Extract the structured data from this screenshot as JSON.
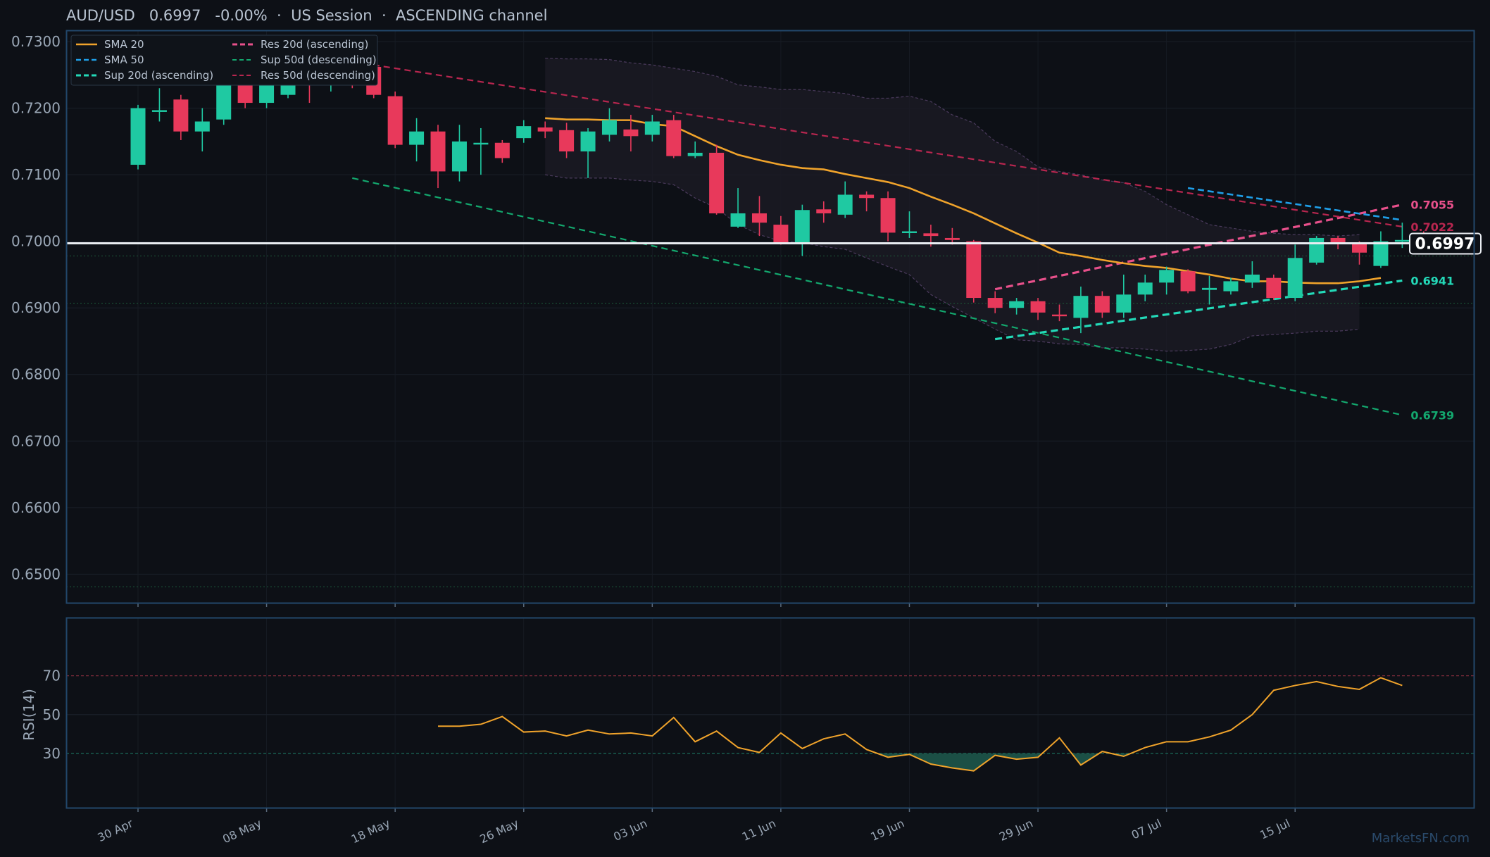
{
  "header": {
    "symbol": "AUD/USD",
    "price": "0.6997",
    "change": "-0.00%",
    "session": "US Session",
    "channel": "ASCENDING channel"
  },
  "watermark": "MarketsFN.com",
  "colors": {
    "background": "#0d1016",
    "up": "#1fc9a2",
    "down": "#e8395b",
    "sma20": "#f0a32b",
    "sma50": "#1f9fe8",
    "res20": "#e8508b",
    "res50": "#b8264f",
    "sup20": "#23d9b8",
    "sup50": "#13a86e",
    "rsi": "#f0a32b"
  },
  "chart_data": [
    {
      "type": "candlestick",
      "title": "AUD/USD",
      "ylim": [
        0.6457,
        0.7317
      ],
      "yticks": [
        "0.7300",
        "0.7200",
        "0.7100",
        "0.7000",
        "0.6900",
        "0.6800",
        "0.6700",
        "0.6600",
        "0.6500"
      ],
      "xticks": [
        "30 Apr",
        "08 May",
        "18 May",
        "26 May",
        "03 Jun",
        "11 Jun",
        "19 Jun",
        "29 Jun",
        "07 Jul",
        "15 Jul"
      ],
      "xtick_index": [
        0,
        6,
        12,
        18,
        24,
        30,
        36,
        42,
        48,
        54
      ],
      "current_price": 0.6997,
      "current_price_label": "0.6997",
      "candles": [
        {
          "o": 0.7115,
          "h": 0.7205,
          "l": 0.7108,
          "c": 0.72
        },
        {
          "o": 0.7197,
          "h": 0.723,
          "l": 0.718,
          "c": 0.7197
        },
        {
          "o": 0.7213,
          "h": 0.722,
          "l": 0.7152,
          "c": 0.7165
        },
        {
          "o": 0.7165,
          "h": 0.72,
          "l": 0.7135,
          "c": 0.718
        },
        {
          "o": 0.7183,
          "h": 0.725,
          "l": 0.7175,
          "c": 0.7245
        },
        {
          "o": 0.725,
          "h": 0.7262,
          "l": 0.72,
          "c": 0.7208
        },
        {
          "o": 0.7208,
          "h": 0.7262,
          "l": 0.72,
          "c": 0.7255
        },
        {
          "o": 0.722,
          "h": 0.7265,
          "l": 0.7215,
          "c": 0.7255
        },
        {
          "o": 0.726,
          "h": 0.727,
          "l": 0.7208,
          "c": 0.724
        },
        {
          "o": 0.7243,
          "h": 0.7275,
          "l": 0.7225,
          "c": 0.727
        },
        {
          "o": 0.726,
          "h": 0.727,
          "l": 0.723,
          "c": 0.725
        },
        {
          "o": 0.7262,
          "h": 0.7265,
          "l": 0.7215,
          "c": 0.722
        },
        {
          "o": 0.7218,
          "h": 0.7225,
          "l": 0.714,
          "c": 0.7145
        },
        {
          "o": 0.7145,
          "h": 0.7185,
          "l": 0.712,
          "c": 0.7165
        },
        {
          "o": 0.7165,
          "h": 0.7175,
          "l": 0.708,
          "c": 0.7105
        },
        {
          "o": 0.7105,
          "h": 0.7175,
          "l": 0.709,
          "c": 0.715
        },
        {
          "o": 0.7148,
          "h": 0.717,
          "l": 0.71,
          "c": 0.7148
        },
        {
          "o": 0.7148,
          "h": 0.7152,
          "l": 0.7118,
          "c": 0.7125
        },
        {
          "o": 0.7155,
          "h": 0.7182,
          "l": 0.7148,
          "c": 0.7173
        },
        {
          "o": 0.7171,
          "h": 0.718,
          "l": 0.7155,
          "c": 0.7165
        },
        {
          "o": 0.7167,
          "h": 0.7178,
          "l": 0.7125,
          "c": 0.7135
        },
        {
          "o": 0.7135,
          "h": 0.717,
          "l": 0.7095,
          "c": 0.7165
        },
        {
          "o": 0.716,
          "h": 0.72,
          "l": 0.715,
          "c": 0.7182
        },
        {
          "o": 0.7168,
          "h": 0.719,
          "l": 0.7135,
          "c": 0.7158
        },
        {
          "o": 0.716,
          "h": 0.719,
          "l": 0.715,
          "c": 0.718
        },
        {
          "o": 0.7182,
          "h": 0.719,
          "l": 0.7125,
          "c": 0.7128
        },
        {
          "o": 0.7128,
          "h": 0.715,
          "l": 0.7125,
          "c": 0.7133
        },
        {
          "o": 0.7133,
          "h": 0.7145,
          "l": 0.704,
          "c": 0.7042
        },
        {
          "o": 0.7022,
          "h": 0.708,
          "l": 0.702,
          "c": 0.7042
        },
        {
          "o": 0.7042,
          "h": 0.7068,
          "l": 0.7008,
          "c": 0.7028
        },
        {
          "o": 0.7025,
          "h": 0.7038,
          "l": 0.6995,
          "c": 0.6998
        },
        {
          "o": 0.6998,
          "h": 0.7055,
          "l": 0.6978,
          "c": 0.7047
        },
        {
          "o": 0.7048,
          "h": 0.706,
          "l": 0.7028,
          "c": 0.7042
        },
        {
          "o": 0.704,
          "h": 0.709,
          "l": 0.7035,
          "c": 0.707
        },
        {
          "o": 0.707,
          "h": 0.7075,
          "l": 0.7045,
          "c": 0.7065
        },
        {
          "o": 0.7065,
          "h": 0.7075,
          "l": 0.7,
          "c": 0.7013
        },
        {
          "o": 0.7013,
          "h": 0.7045,
          "l": 0.7005,
          "c": 0.7015
        },
        {
          "o": 0.7012,
          "h": 0.7025,
          "l": 0.6992,
          "c": 0.7008
        },
        {
          "o": 0.7005,
          "h": 0.702,
          "l": 0.6995,
          "c": 0.7002
        },
        {
          "o": 0.7,
          "h": 0.7002,
          "l": 0.6908,
          "c": 0.6915
        },
        {
          "o": 0.6915,
          "h": 0.6925,
          "l": 0.6892,
          "c": 0.69
        },
        {
          "o": 0.69,
          "h": 0.6915,
          "l": 0.689,
          "c": 0.691
        },
        {
          "o": 0.691,
          "h": 0.6915,
          "l": 0.6882,
          "c": 0.6893
        },
        {
          "o": 0.689,
          "h": 0.6905,
          "l": 0.688,
          "c": 0.6888
        },
        {
          "o": 0.6885,
          "h": 0.6932,
          "l": 0.6862,
          "c": 0.6918
        },
        {
          "o": 0.6918,
          "h": 0.6925,
          "l": 0.6885,
          "c": 0.6893
        },
        {
          "o": 0.6893,
          "h": 0.695,
          "l": 0.6885,
          "c": 0.692
        },
        {
          "o": 0.692,
          "h": 0.695,
          "l": 0.691,
          "c": 0.6938
        },
        {
          "o": 0.6938,
          "h": 0.6962,
          "l": 0.692,
          "c": 0.6957
        },
        {
          "o": 0.6955,
          "h": 0.6958,
          "l": 0.6922,
          "c": 0.6925
        },
        {
          "o": 0.6927,
          "h": 0.6948,
          "l": 0.6905,
          "c": 0.693
        },
        {
          "o": 0.6925,
          "h": 0.6945,
          "l": 0.692,
          "c": 0.694
        },
        {
          "o": 0.6938,
          "h": 0.697,
          "l": 0.693,
          "c": 0.695
        },
        {
          "o": 0.6945,
          "h": 0.695,
          "l": 0.6912,
          "c": 0.6915
        },
        {
          "o": 0.6915,
          "h": 0.6995,
          "l": 0.691,
          "c": 0.6975
        },
        {
          "o": 0.6968,
          "h": 0.7008,
          "l": 0.6965,
          "c": 0.7005
        },
        {
          "o": 0.7005,
          "h": 0.7008,
          "l": 0.6988,
          "c": 0.6998
        },
        {
          "o": 0.6997,
          "h": 0.7,
          "l": 0.6965,
          "c": 0.6983
        },
        {
          "o": 0.6963,
          "h": 0.7015,
          "l": 0.696,
          "c": 0.7
        },
        {
          "o": 0.7002,
          "h": 0.7028,
          "l": 0.699,
          "c": 0.7002
        },
        {
          "o": 0.7,
          "h": 0.7015,
          "l": 0.699,
          "c": 0.6997
        }
      ],
      "sma20": {
        "start": 19,
        "values": [
          0.7185,
          0.7183,
          0.7183,
          0.7182,
          0.7182,
          0.7176,
          0.7173,
          0.7158,
          0.7143,
          0.713,
          0.7122,
          0.7115,
          0.711,
          0.7108,
          0.7101,
          0.7095,
          0.7089,
          0.708,
          0.7067,
          0.7055,
          0.7042,
          0.7027,
          0.7012,
          0.6998,
          0.6983,
          0.6978,
          0.6972,
          0.6967,
          0.6963,
          0.696,
          0.6955,
          0.695,
          0.6944,
          0.694,
          0.694,
          0.6938,
          0.6937,
          0.6937,
          0.694,
          0.6945
        ]
      },
      "channel_band": {
        "start": 19,
        "upper": [
          0.7275,
          0.7274,
          0.7274,
          0.7273,
          0.7268,
          0.7265,
          0.726,
          0.7255,
          0.7248,
          0.7235,
          0.7232,
          0.7228,
          0.7228,
          0.7225,
          0.7222,
          0.7215,
          0.7215,
          0.7218,
          0.721,
          0.719,
          0.7178,
          0.715,
          0.7135,
          0.7112,
          0.7105,
          0.71,
          0.7092,
          0.7088,
          0.7075,
          0.7055,
          0.704,
          0.7025,
          0.702,
          0.7015,
          0.7012,
          0.701,
          0.701,
          0.7008,
          0.701
        ],
        "lower": [
          0.71,
          0.7095,
          0.7095,
          0.7095,
          0.7092,
          0.709,
          0.7085,
          0.7065,
          0.705,
          0.7025,
          0.701,
          0.7,
          0.6998,
          0.6992,
          0.6988,
          0.6975,
          0.6962,
          0.695,
          0.692,
          0.6902,
          0.6885,
          0.6868,
          0.6852,
          0.685,
          0.6846,
          0.6845,
          0.684,
          0.684,
          0.6838,
          0.6835,
          0.6836,
          0.6838,
          0.6845,
          0.6858,
          0.686,
          0.6862,
          0.6865,
          0.6865,
          0.6868
        ]
      },
      "trendlines": [
        {
          "name": "Res 20d (ascending)",
          "from": [
            40,
            0.6928
          ],
          "to": [
            59,
            0.7055
          ],
          "label": "0.7055"
        },
        {
          "name": "Sup 20d (ascending)",
          "from": [
            40,
            0.6853
          ],
          "to": [
            59,
            0.6941
          ],
          "label": "0.6941"
        },
        {
          "name": "Res 50d (descending)",
          "from": [
            10,
            0.727
          ],
          "to": [
            59,
            0.7022
          ],
          "label": "0.7022"
        },
        {
          "name": "Sup 50d (descending)",
          "from": [
            10,
            0.7095
          ],
          "to": [
            59,
            0.6739
          ],
          "label": "0.6739"
        },
        {
          "name": "SMA 50",
          "from": [
            49,
            0.708
          ],
          "to": [
            59,
            0.7032
          ]
        }
      ],
      "horizontal_levels": [
        0.6978,
        0.6907,
        0.6481
      ],
      "legend": {
        "position": "top-left",
        "items": [
          "SMA 20",
          "SMA 50",
          "Sup 20d (ascending)",
          "Res 20d (ascending)",
          "Sup 50d (descending)",
          "Res 50d (descending)"
        ]
      }
    },
    {
      "type": "line",
      "ylabel": "RSI(14)",
      "ylim": [
        2,
        100
      ],
      "yticks": [
        "70",
        "50",
        "30"
      ],
      "overbought": 70,
      "oversold": 30,
      "start": 14,
      "values": [
        44,
        44,
        45,
        49,
        41,
        41.5,
        39,
        42,
        40,
        40.5,
        39,
        48.5,
        36,
        41.5,
        33,
        30.5,
        40.5,
        32.5,
        37.5,
        40,
        32,
        28,
        29.5,
        24.5,
        22.5,
        21,
        29,
        27,
        28,
        38,
        24,
        31,
        28.5,
        33,
        36,
        36,
        38.5,
        42,
        50,
        62.5,
        65,
        67,
        64.5,
        63,
        69,
        65
      ]
    }
  ]
}
